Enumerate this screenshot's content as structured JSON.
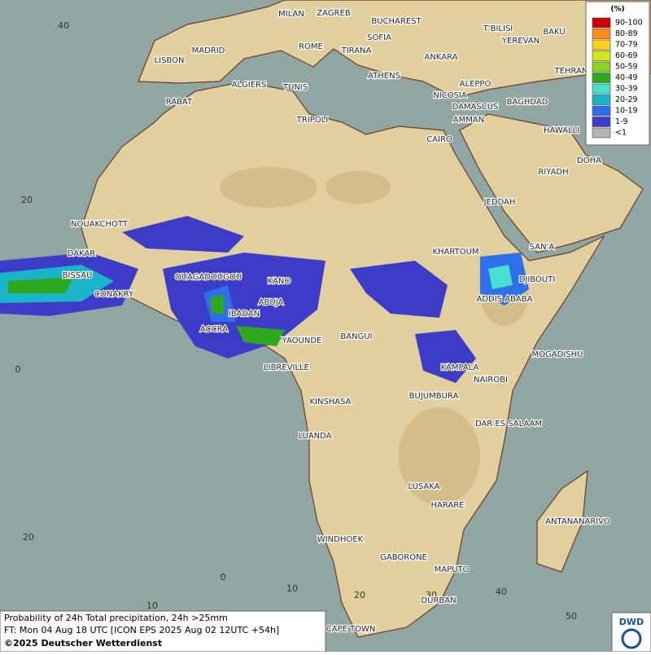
{
  "legend": {
    "title": "(%)",
    "entries": [
      {
        "label": "90-100",
        "color": "#cc0000"
      },
      {
        "label": "80-89",
        "color": "#ff8c1a"
      },
      {
        "label": "70-79",
        "color": "#ffd11a"
      },
      {
        "label": "60-69",
        "color": "#d2e619"
      },
      {
        "label": "50-59",
        "color": "#8cd21e"
      },
      {
        "label": "40-49",
        "color": "#2ea81e"
      },
      {
        "label": "30-39",
        "color": "#46e0d2"
      },
      {
        "label": "20-29",
        "color": "#1ab4c8"
      },
      {
        "label": "10-19",
        "color": "#2f6fe8"
      },
      {
        "label": "1-9",
        "color": "#3c3cc8"
      },
      {
        "label": "<1",
        "color": "#b4b4b4"
      }
    ]
  },
  "cities": [
    "MILAN",
    "ZAGREB",
    "BUCHAREST",
    "T'BILISI",
    "BAKU",
    "YEREVAN",
    "MADRID",
    "ROME",
    "SOFIA",
    "TIRANA",
    "ANKARA",
    "LISBON",
    "TEHRAN",
    "ATHENS",
    "ALGIERS",
    "TUNIS",
    "ALEPPO",
    "RABAT",
    "NICOSIA",
    "BAGHDAD",
    "DAMASCUS",
    "TRIPOLI",
    "AMMAN",
    "HAWALLI",
    "CAIRO",
    "DOHA",
    "RIYADH",
    "JEDDAH",
    "NOUAKCHOTT",
    "SAN'A",
    "KHARTOUM",
    "DAKAR",
    "DJIBOUTI",
    "BISSAU",
    "OUAGADOUGOU",
    "KANO",
    "CONAKRY",
    "ADDIS ABABA",
    "ABUJA",
    "IBADAN",
    "ACCRA",
    "YAOUNDE",
    "BANGUI",
    "MOGADISHU",
    "LIBREVILLE",
    "KAMPALA",
    "NAIROBI",
    "KINSHASA",
    "BUJUMBURA",
    "DAR ES SALAAM",
    "LUANDA",
    "LUSAKA",
    "HARARE",
    "ANTANANARIVO",
    "WINDHOEK",
    "GABORONE",
    "MAPUTO",
    "DURBAN",
    "CAPE TOWN"
  ],
  "latitude_labels": [
    40,
    20,
    0,
    20
  ],
  "longitude_labels": [
    10,
    0,
    10,
    20,
    30,
    40,
    50
  ],
  "footer": {
    "product": "Probability of 24h Total precipitation, 24h >25mm",
    "forecast_time": "FT: Mon 04 Aug 18 UTC [ICON EPS 2025 Aug 02 12UTC +54h]",
    "copyright": "©2025 Deutscher Wetterdienst"
  },
  "logo": "DWD"
}
